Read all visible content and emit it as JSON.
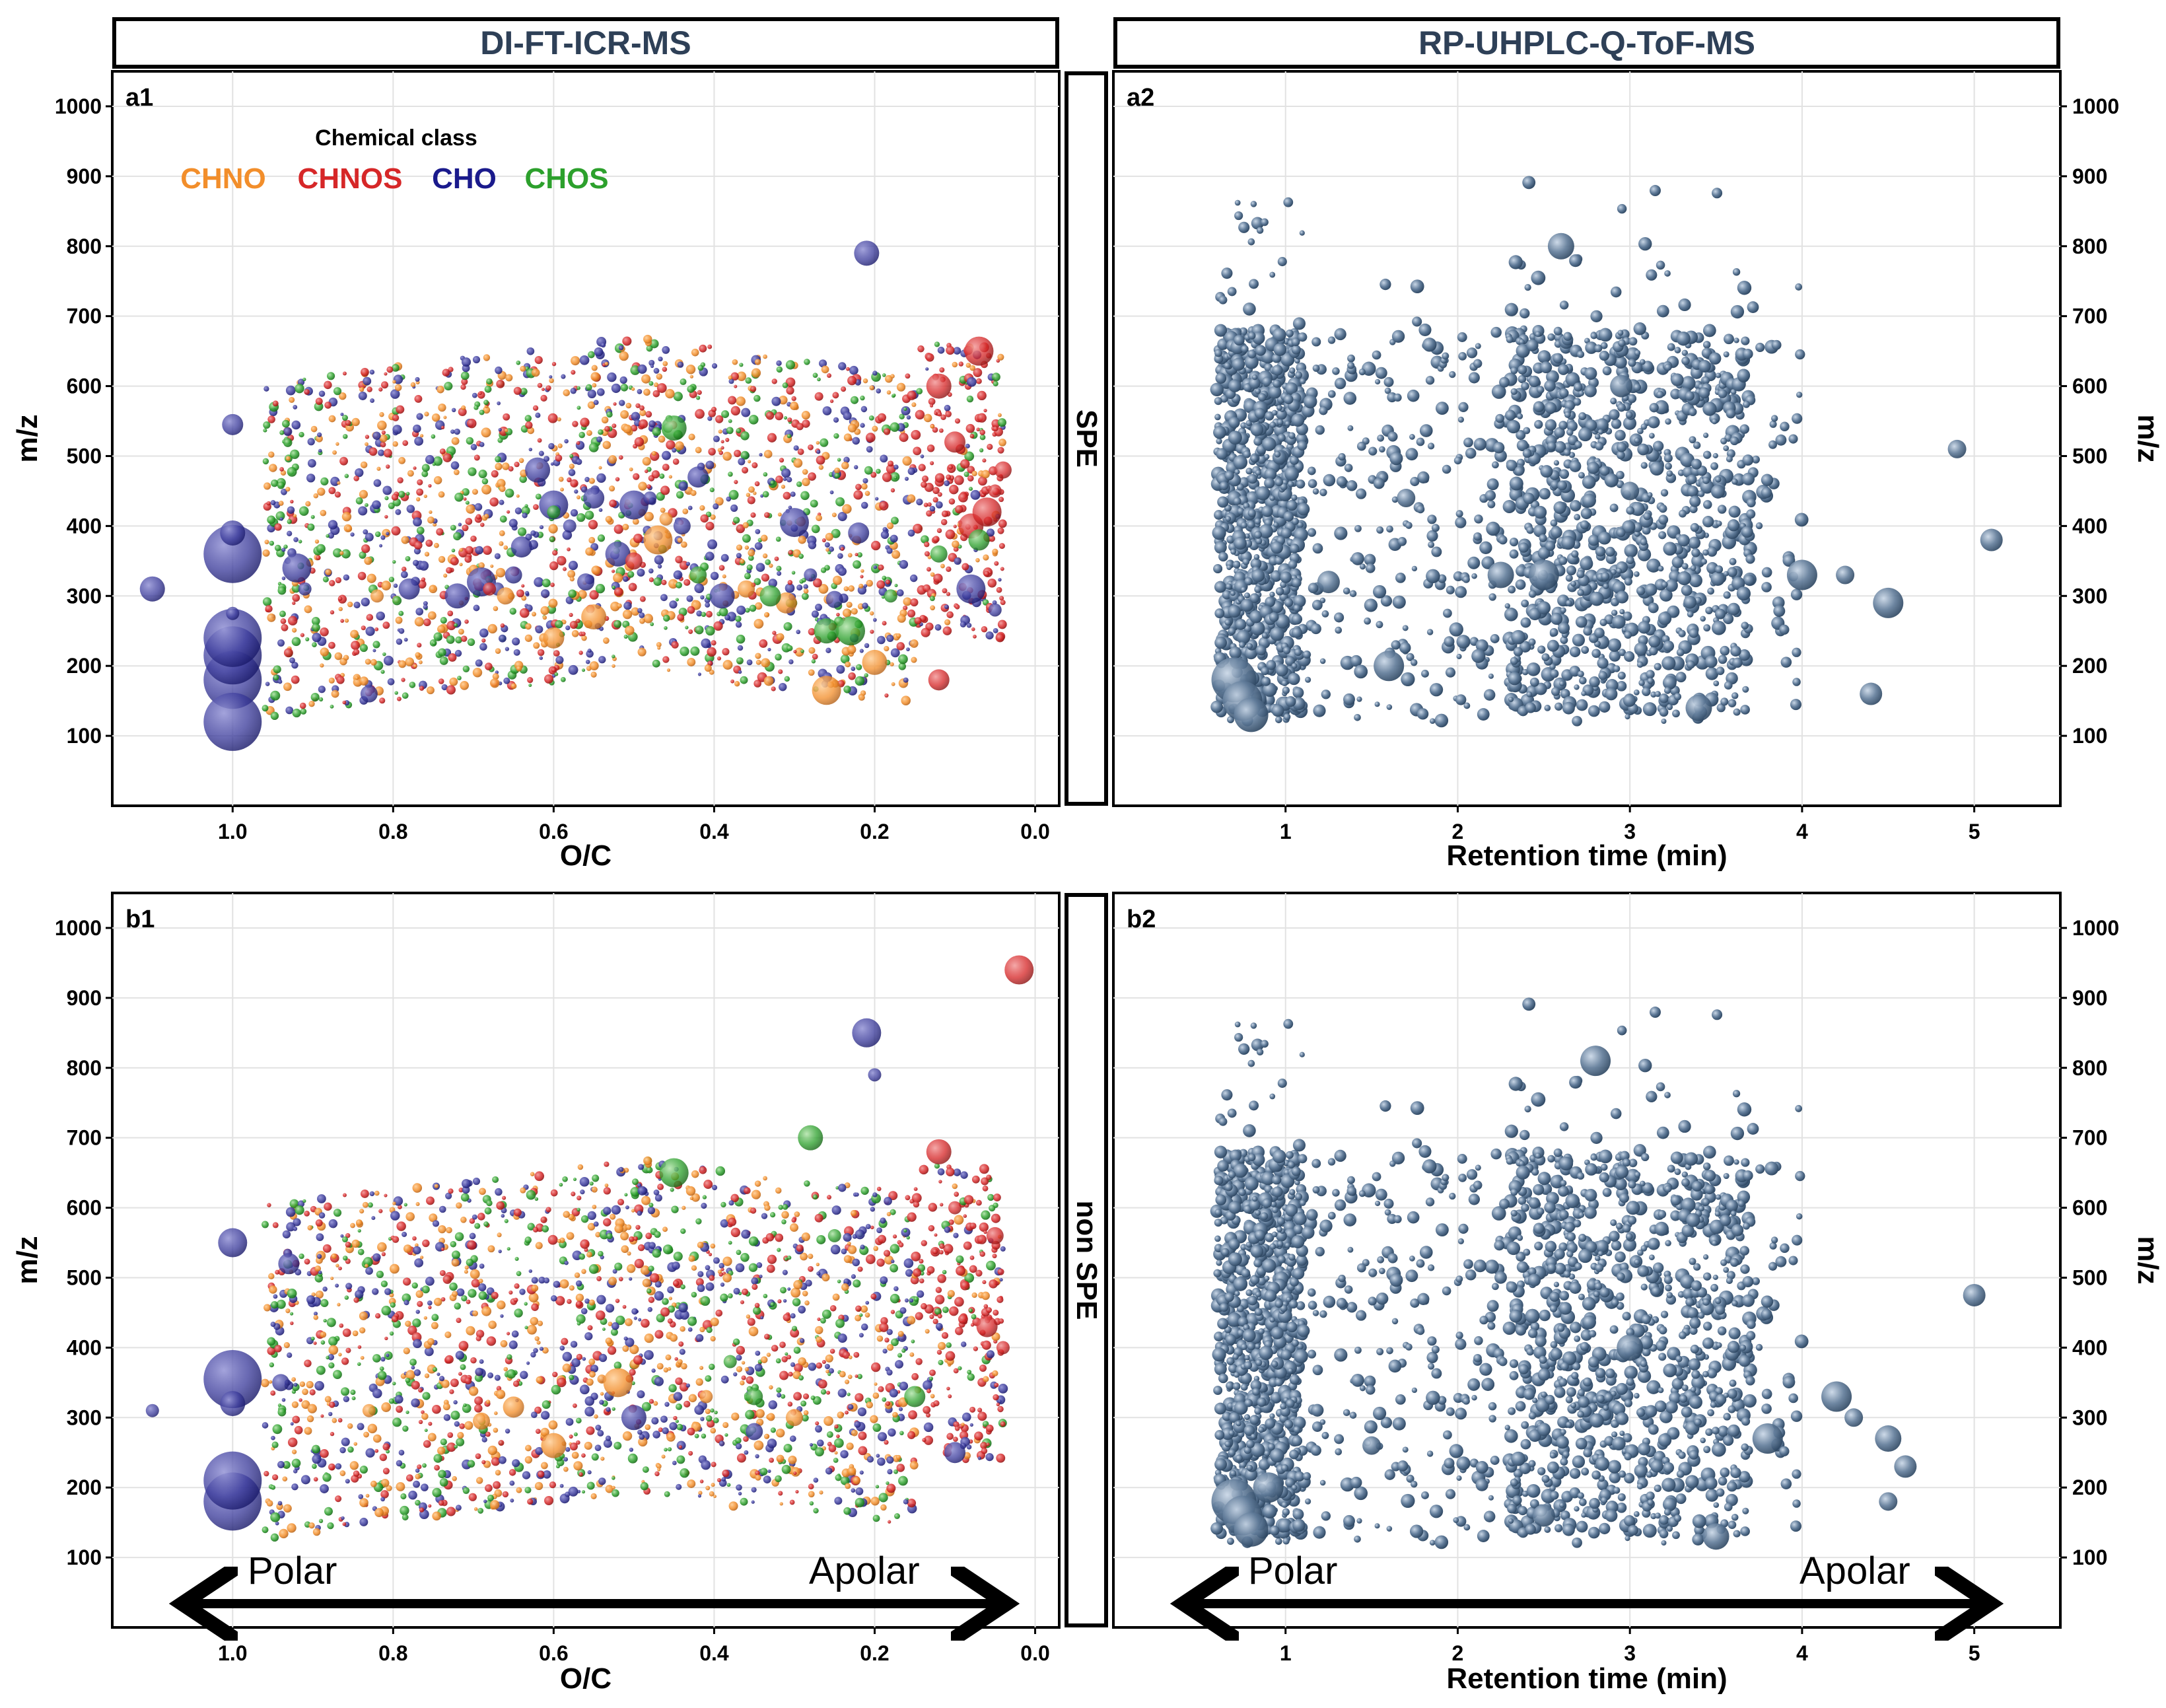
{
  "headers": {
    "left": "DI-FT-ICR-MS",
    "right": "RP-UHPLC-Q-ToF-MS"
  },
  "row_labels": {
    "top": "SPE",
    "bottom": "non SPE"
  },
  "legend": {
    "title": "Chemical class",
    "items": [
      {
        "name": "CHNO",
        "color": "#f28e2b"
      },
      {
        "name": "CHNOS",
        "color": "#d62728"
      },
      {
        "name": "CHO",
        "color": "#1a1a8c"
      },
      {
        "name": "CHOS",
        "color": "#2ca02c"
      }
    ]
  },
  "arrows": {
    "left_text": "Polar",
    "right_text": "Apolar"
  },
  "chart_data": [
    {
      "panel": "a1",
      "type": "scatter",
      "xlabel": "O/C",
      "ylabel": "m/z",
      "xlim": [
        1.15,
        -0.03
      ],
      "x_reversed": true,
      "ylim": [
        0,
        1050
      ],
      "xticks": [
        "1.0",
        "0.8",
        "0.6",
        "0.4",
        "0.2",
        "0.0"
      ],
      "yticks": [
        "100",
        "200",
        "300",
        "400",
        "500",
        "600",
        "700",
        "800",
        "900",
        "1000"
      ],
      "grid": true,
      "legend_position": "top-left",
      "bubble": true,
      "series": [
        {
          "name": "CHO",
          "points": [
            [
              1.0,
              180
            ],
            [
              1.0,
              215
            ],
            [
              1.0,
              360
            ],
            [
              1.0,
              390
            ],
            [
              1.0,
              240
            ],
            [
              1.0,
              275
            ],
            [
              1.0,
              120
            ],
            [
              1.0,
              545
            ],
            [
              1.1,
              310
            ],
            [
              0.92,
              340
            ],
            [
              0.91,
              310
            ],
            [
              0.83,
              160
            ],
            [
              0.78,
              310
            ],
            [
              0.72,
              300
            ],
            [
              0.69,
              320
            ],
            [
              0.67,
              310
            ],
            [
              0.65,
              330
            ],
            [
              0.64,
              370
            ],
            [
              0.62,
              480
            ],
            [
              0.6,
              430
            ],
            [
              0.58,
              400
            ],
            [
              0.56,
              320
            ],
            [
              0.55,
              440
            ],
            [
              0.52,
              360
            ],
            [
              0.5,
              430
            ],
            [
              0.48,
              440
            ],
            [
              0.44,
              400
            ],
            [
              0.42,
              470
            ],
            [
              0.39,
              300
            ],
            [
              0.3,
              405
            ],
            [
              0.28,
              330
            ],
            [
              0.25,
              295
            ],
            [
              0.22,
              390
            ],
            [
              0.21,
              790
            ],
            [
              0.08,
              310
            ],
            [
              0.05,
              280
            ]
          ]
        },
        {
          "name": "CHNO",
          "points": [
            [
              0.82,
              300
            ],
            [
              0.66,
              300
            ],
            [
              0.6,
              240
            ],
            [
              0.55,
              270
            ],
            [
              0.47,
              380
            ],
            [
              0.46,
              410
            ],
            [
              0.36,
              310
            ],
            [
              0.31,
              290
            ],
            [
              0.2,
              205
            ],
            [
              0.26,
              165
            ]
          ]
        },
        {
          "name": "CHNOS",
          "points": [
            [
              0.68,
              310
            ],
            [
              0.5,
              350
            ],
            [
              0.12,
              180
            ],
            [
              0.08,
              400
            ],
            [
              0.06,
              420
            ],
            [
              0.05,
              450
            ],
            [
              0.04,
              480
            ],
            [
              0.1,
              520
            ],
            [
              0.12,
              600
            ],
            [
              0.07,
              650
            ]
          ]
        },
        {
          "name": "CHOS",
          "points": [
            [
              0.6,
              420
            ],
            [
              0.42,
              330
            ],
            [
              0.33,
              300
            ],
            [
              0.26,
              250
            ],
            [
              0.23,
              250
            ],
            [
              0.18,
              300
            ],
            [
              0.12,
              360
            ],
            [
              0.07,
              380
            ],
            [
              0.45,
              540
            ]
          ]
        }
      ]
    },
    {
      "panel": "a2",
      "type": "scatter",
      "xlabel": "Retention time (min)",
      "ylabel": "m/z",
      "xlim": [
        0.0,
        5.5
      ],
      "ylim": [
        0,
        1050
      ],
      "xticks": [
        "1",
        "2",
        "3",
        "4",
        "5"
      ],
      "yticks": [
        "100",
        "200",
        "300",
        "400",
        "500",
        "600",
        "700",
        "800",
        "900",
        "1000"
      ],
      "grid": true,
      "bubble": true,
      "series": [
        {
          "name": "",
          "points": [
            [
              0.7,
              180
            ],
            [
              0.75,
              150
            ],
            [
              0.8,
              130
            ],
            [
              1.6,
              200
            ],
            [
              1.7,
              440
            ],
            [
              1.25,
              320
            ],
            [
              2.25,
              330
            ],
            [
              2.5,
              330
            ],
            [
              3.0,
              450
            ],
            [
              2.95,
              600
            ],
            [
              2.6,
              800
            ],
            [
              4.0,
              330
            ],
            [
              4.25,
              330
            ],
            [
              4.4,
              160
            ],
            [
              3.4,
              140
            ],
            [
              4.5,
              290
            ],
            [
              4.9,
              510
            ],
            [
              5.1,
              380
            ]
          ]
        }
      ]
    },
    {
      "panel": "b1",
      "type": "scatter",
      "xlabel": "O/C",
      "ylabel": "m/z",
      "xlim": [
        1.15,
        -0.03
      ],
      "x_reversed": true,
      "ylim": [
        0,
        1050
      ],
      "xticks": [
        "1.0",
        "0.8",
        "0.6",
        "0.4",
        "0.2",
        "0.0"
      ],
      "yticks": [
        "100",
        "200",
        "300",
        "400",
        "500",
        "600",
        "700",
        "800",
        "900",
        "1000"
      ],
      "grid": true,
      "bubble": true,
      "series": [
        {
          "name": "CHO",
          "points": [
            [
              1.0,
              355
            ],
            [
              1.0,
              180
            ],
            [
              1.0,
              210
            ],
            [
              1.0,
              320
            ],
            [
              1.0,
              550
            ],
            [
              1.1,
              310
            ],
            [
              0.94,
              350
            ],
            [
              0.93,
              520
            ],
            [
              0.5,
              300
            ],
            [
              0.21,
              850
            ],
            [
              0.2,
              790
            ],
            [
              0.35,
              280
            ],
            [
              0.1,
              250
            ]
          ]
        },
        {
          "name": "CHNO",
          "points": [
            [
              0.83,
              310
            ],
            [
              0.69,
              295
            ],
            [
              0.65,
              315
            ],
            [
              0.6,
              260
            ],
            [
              0.52,
              350
            ],
            [
              0.41,
              330
            ],
            [
              0.3,
              300
            ]
          ]
        },
        {
          "name": "CHNOS",
          "points": [
            [
              0.1,
              600
            ],
            [
              0.05,
              560
            ],
            [
              0.06,
              430
            ],
            [
              0.12,
              680
            ],
            [
              0.02,
              940
            ],
            [
              0.04,
              400
            ]
          ]
        },
        {
          "name": "CHOS",
          "points": [
            [
              0.38,
              380
            ],
            [
              0.35,
              330
            ],
            [
              0.15,
              330
            ],
            [
              0.28,
              700
            ],
            [
              0.45,
              650
            ],
            [
              0.25,
              560
            ]
          ]
        }
      ]
    },
    {
      "panel": "b2",
      "type": "scatter",
      "xlabel": "Retention time (min)",
      "ylabel": "m/z",
      "xlim": [
        0.0,
        5.5
      ],
      "ylim": [
        0,
        1050
      ],
      "xticks": [
        "1",
        "2",
        "3",
        "4",
        "5"
      ],
      "yticks": [
        "100",
        "200",
        "300",
        "400",
        "500",
        "600",
        "700",
        "800",
        "900",
        "1000"
      ],
      "grid": true,
      "bubble": true,
      "series": [
        {
          "name": "",
          "points": [
            [
              0.7,
              180
            ],
            [
              0.75,
              160
            ],
            [
              0.8,
              140
            ],
            [
              0.9,
              200
            ],
            [
              1.5,
              260
            ],
            [
              2.5,
              160
            ],
            [
              3.0,
              400
            ],
            [
              2.8,
              810
            ],
            [
              4.5,
              180
            ],
            [
              4.6,
              230
            ],
            [
              4.5,
              270
            ],
            [
              4.2,
              330
            ],
            [
              4.3,
              300
            ],
            [
              5.0,
              475
            ],
            [
              3.5,
              130
            ],
            [
              3.8,
              270
            ]
          ]
        }
      ]
    }
  ]
}
